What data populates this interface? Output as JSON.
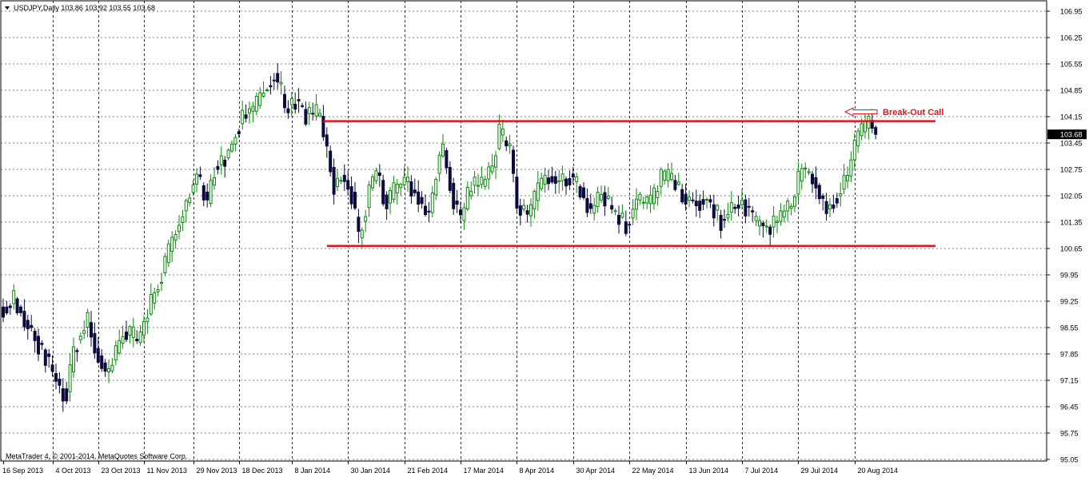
{
  "header": {
    "symbol_line": "USDJPY,Daily  103.86 103.92 103.55 103.68",
    "menu_arrow": "triangle-down-icon"
  },
  "footer": {
    "copyright": "MetaTrader 4, © 2001-2014, MetaQuotes Software Corp."
  },
  "annotation": {
    "text": "Break-Out Call",
    "color": "#e0161d"
  },
  "colors": {
    "bull": "#0a8a0a",
    "bear": "#0a0a3c",
    "grid": "#000000",
    "level_line": "#e0161d",
    "price_label_bg": "#000000",
    "price_label_fg": "#ffffff"
  },
  "chart_data": {
    "type": "candlestick",
    "instrument": "USDJPY",
    "timeframe": "Daily",
    "ohlc_last": {
      "open": 103.86,
      "high": 103.92,
      "low": 103.55,
      "close": 103.68
    },
    "current_price_label": "103.68",
    "ylim": [
      95.05,
      106.95
    ],
    "y_ticks": [
      "106.95",
      "106.25",
      "105.55",
      "104.85",
      "104.15",
      "103.45",
      "102.75",
      "102.05",
      "101.35",
      "100.65",
      "99.95",
      "99.25",
      "98.55",
      "97.85",
      "97.15",
      "96.45",
      "95.75",
      "95.05"
    ],
    "x_start": "2013-09-16",
    "x_ticks": [
      {
        "label": "16 Sep 2013",
        "date": "2013-09-16"
      },
      {
        "label": "4 Oct 2013",
        "date": "2013-10-04"
      },
      {
        "label": "23 Oct 2013",
        "date": "2013-10-23"
      },
      {
        "label": "11 Nov 2013",
        "date": "2013-11-11"
      },
      {
        "label": "29 Nov 2013",
        "date": "2013-11-29"
      },
      {
        "label": "18 Dec 2013",
        "date": "2013-12-18"
      },
      {
        "label": "8 Jan 2014",
        "date": "2014-01-08"
      },
      {
        "label": "30 Jan 2014",
        "date": "2014-01-30"
      },
      {
        "label": "21 Feb 2014",
        "date": "2014-02-21"
      },
      {
        "label": "17 Mar 2014",
        "date": "2014-03-17"
      },
      {
        "label": "8 Apr 2014",
        "date": "2014-04-08"
      },
      {
        "label": "30 Apr 2014",
        "date": "2014-04-30"
      },
      {
        "label": "22 May 2014",
        "date": "2014-05-22"
      },
      {
        "label": "13 Jun 2014",
        "date": "2014-06-13"
      },
      {
        "label": "7 Jul 2014",
        "date": "2014-07-07"
      },
      {
        "label": "29 Jul 2014",
        "date": "2014-07-29"
      },
      {
        "label": "20 Aug 2014",
        "date": "2014-08-20"
      }
    ],
    "grid": "dotted",
    "levels": [
      {
        "name": "resistance",
        "price": 104.03,
        "from": "2014-01-21",
        "to": "2014-09-22"
      },
      {
        "name": "support",
        "price": 100.72,
        "from": "2014-01-22",
        "to": "2014-09-22"
      }
    ],
    "close_path": [
      [
        "2013-09-16",
        99.1
      ],
      [
        "2013-09-19",
        99.3
      ],
      [
        "2013-09-25",
        98.6
      ],
      [
        "2013-10-02",
        97.8
      ],
      [
        "2013-10-08",
        96.95
      ],
      [
        "2013-10-10",
        96.8
      ],
      [
        "2013-10-14",
        98.0
      ],
      [
        "2013-10-18",
        98.7
      ],
      [
        "2013-10-22",
        98.0
      ],
      [
        "2013-10-25",
        97.4
      ],
      [
        "2013-10-28",
        97.4
      ],
      [
        "2013-11-01",
        98.4
      ],
      [
        "2013-11-06",
        98.3
      ],
      [
        "2013-11-07",
        98.1
      ],
      [
        "2013-11-13",
        99.2
      ],
      [
        "2013-11-18",
        100.0
      ],
      [
        "2013-11-22",
        101.1
      ],
      [
        "2013-11-27",
        101.9
      ],
      [
        "2013-12-02",
        102.6
      ],
      [
        "2013-12-05",
        101.9
      ],
      [
        "2013-12-09",
        102.8
      ],
      [
        "2013-12-13",
        103.2
      ],
      [
        "2013-12-19",
        104.2
      ],
      [
        "2013-12-24",
        104.3
      ],
      [
        "2013-12-27",
        104.9
      ],
      [
        "2014-01-01",
        105.3
      ],
      [
        "2014-01-03",
        104.8
      ],
      [
        "2014-01-06",
        104.4
      ],
      [
        "2014-01-09",
        104.6
      ],
      [
        "2014-01-14",
        104.2
      ],
      [
        "2014-01-17",
        104.2
      ],
      [
        "2014-01-20",
        104.1
      ],
      [
        "2014-01-24",
        102.3
      ],
      [
        "2014-01-28",
        102.6
      ],
      [
        "2014-01-31",
        102.1
      ],
      [
        "2014-02-04",
        100.9
      ],
      [
        "2014-02-07",
        102.2
      ],
      [
        "2014-02-11",
        102.7
      ],
      [
        "2014-02-14",
        101.8
      ],
      [
        "2014-02-19",
        102.3
      ],
      [
        "2014-02-24",
        102.4
      ],
      [
        "2014-02-28",
        101.8
      ],
      [
        "2014-03-04",
        101.6
      ],
      [
        "2014-03-07",
        103.1
      ],
      [
        "2014-03-10",
        103.3
      ],
      [
        "2014-03-13",
        101.9
      ],
      [
        "2014-03-17",
        101.4
      ],
      [
        "2014-03-20",
        102.3
      ],
      [
        "2014-03-25",
        102.3
      ],
      [
        "2014-03-28",
        102.8
      ],
      [
        "2014-04-01",
        103.7
      ],
      [
        "2014-04-04",
        103.3
      ],
      [
        "2014-04-08",
        101.8
      ],
      [
        "2014-04-11",
        101.5
      ],
      [
        "2014-04-16",
        102.2
      ],
      [
        "2014-04-21",
        102.6
      ],
      [
        "2014-04-24",
        102.4
      ],
      [
        "2014-04-29",
        102.6
      ],
      [
        "2014-05-02",
        102.2
      ],
      [
        "2014-05-07",
        101.6
      ],
      [
        "2014-05-12",
        102.1
      ],
      [
        "2014-05-16",
        101.5
      ],
      [
        "2014-05-21",
        101.3
      ],
      [
        "2014-05-26",
        101.9
      ],
      [
        "2014-05-30",
        101.8
      ],
      [
        "2014-06-04",
        102.5
      ],
      [
        "2014-06-09",
        102.5
      ],
      [
        "2014-06-13",
        101.9
      ],
      [
        "2014-06-18",
        101.9
      ],
      [
        "2014-06-23",
        101.9
      ],
      [
        "2014-06-27",
        101.4
      ],
      [
        "2014-07-02",
        101.7
      ],
      [
        "2014-07-07",
        101.9
      ],
      [
        "2014-07-11",
        101.3
      ],
      [
        "2014-07-16",
        101.2
      ],
      [
        "2014-07-21",
        101.4
      ],
      [
        "2014-07-25",
        101.8
      ],
      [
        "2014-07-30",
        102.8
      ],
      [
        "2014-08-04",
        102.5
      ],
      [
        "2014-08-08",
        101.7
      ],
      [
        "2014-08-13",
        102.1
      ],
      [
        "2014-08-18",
        102.6
      ],
      [
        "2014-08-21",
        103.7
      ],
      [
        "2014-08-26",
        104.0
      ],
      [
        "2014-08-28",
        103.7
      ]
    ]
  }
}
